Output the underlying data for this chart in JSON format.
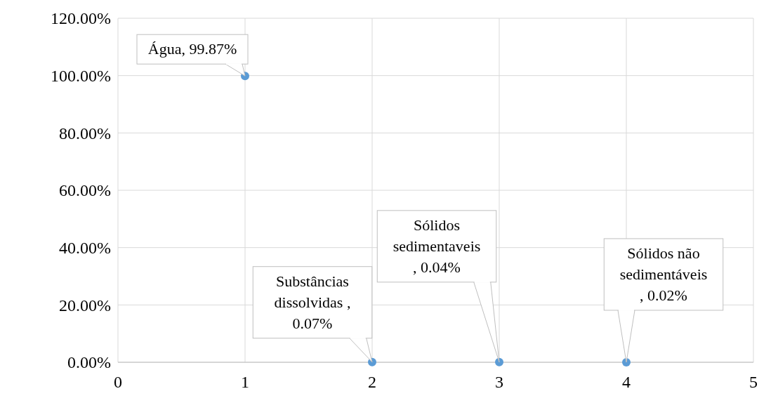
{
  "chart_data": {
    "type": "scatter",
    "x": [
      1,
      2,
      3,
      4
    ],
    "series": [
      {
        "color": "#5b9bd5",
        "values": [
          99.87,
          0.07,
          0.04,
          0.02
        ]
      }
    ],
    "xlim": [
      0,
      5
    ],
    "xticks": [
      0,
      1,
      2,
      3,
      4,
      5
    ],
    "ylim": [
      0,
      120
    ],
    "yticks": [
      {
        "value": 0,
        "label": "0.00%"
      },
      {
        "value": 20,
        "label": "20.00%"
      },
      {
        "value": 40,
        "label": "40.00%"
      },
      {
        "value": 60,
        "label": "60.00%"
      },
      {
        "value": 80,
        "label": "80.00%"
      },
      {
        "value": 100,
        "label": "100.00%"
      },
      {
        "value": 120,
        "label": "120.00%"
      }
    ],
    "grid": true,
    "marker": "circle",
    "annotations": [
      {
        "text": "Água, 99.87%",
        "x": 1,
        "y": 99.87
      },
      {
        "text": "Substâncias\ndissolvidas ,\n0.07%",
        "x": 2,
        "y": 0.07
      },
      {
        "text": "Sólidos\nsedimentaveis\n, 0.04%",
        "x": 3,
        "y": 0.04
      },
      {
        "text": "Sólidos não\nsedimentáveis\n, 0.02%",
        "x": 4,
        "y": 0.02
      }
    ]
  }
}
